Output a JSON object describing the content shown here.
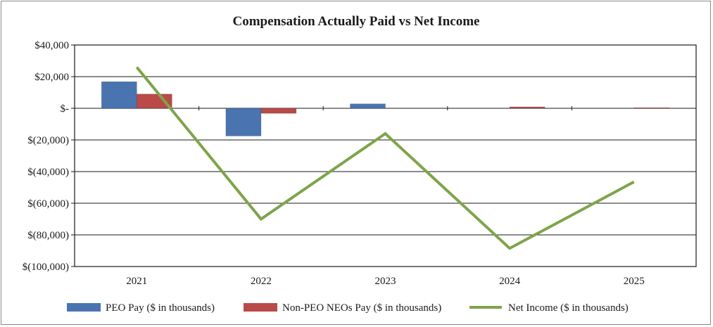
{
  "chart_data": {
    "type": "bar",
    "title": "Compensation Actually Paid vs Net Income",
    "categories": [
      "2021",
      "2022",
      "2023",
      "2024",
      "2025"
    ],
    "ylim": [
      -100000,
      40000
    ],
    "ytick_values": [
      40000,
      20000,
      0,
      -20000,
      -40000,
      -60000,
      -80000,
      -100000
    ],
    "ytick_labels": [
      "$40,000",
      "$20,000",
      "$-",
      "$(20,000)",
      "$(40,000)",
      "$(60,000)",
      "$(80,000)",
      "$(100,000)"
    ],
    "grid": true,
    "legend_position": "bottom",
    "series": [
      {
        "name": "PEO Pay ($ in thousands)",
        "kind": "bar",
        "color": "#4a74b0",
        "values": [
          16800,
          -17500,
          2800,
          0,
          0
        ]
      },
      {
        "name": "Non-PEO NEOs Pay ($ in thousands)",
        "kind": "bar",
        "color": "#b94a48",
        "values": [
          9000,
          -3200,
          0,
          900,
          400
        ]
      },
      {
        "name": "Net Income ($ in thousands)",
        "kind": "line",
        "color": "#7ea44a",
        "values": [
          26000,
          -70000,
          -16000,
          -88500,
          -46500
        ]
      }
    ]
  }
}
